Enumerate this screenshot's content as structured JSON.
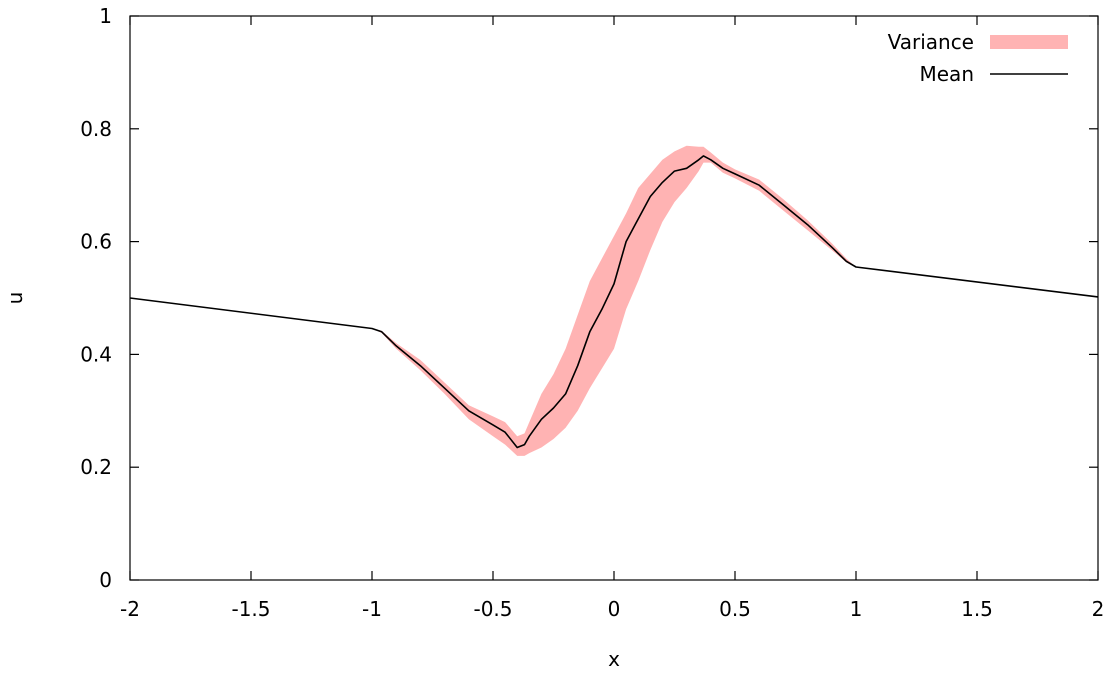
{
  "chart_data": {
    "type": "line",
    "title": "",
    "xlabel": "x",
    "ylabel": "u",
    "xlim": [
      -2,
      2
    ],
    "ylim": [
      0,
      1
    ],
    "x_ticks": [
      -2,
      -1.5,
      -1,
      -0.5,
      0,
      0.5,
      1,
      1.5,
      2
    ],
    "x_tick_labels": [
      "-2",
      "-1.5",
      "-1",
      "-0.5",
      "0",
      "0.5",
      "1",
      "1.5",
      "2"
    ],
    "y_ticks": [
      0,
      0.2,
      0.4,
      0.6,
      0.8,
      1
    ],
    "y_tick_labels": [
      "0",
      "0.2",
      "0.4",
      "0.6",
      "0.8",
      "1"
    ],
    "grid": false,
    "legend_position": "top-right",
    "series": [
      {
        "name": "Mean",
        "kind": "line",
        "color": "#000000",
        "x": [
          -2.0,
          -1.0,
          -0.96,
          -0.9,
          -0.8,
          -0.7,
          -0.6,
          -0.5,
          -0.45,
          -0.4,
          -0.37,
          -0.35,
          -0.3,
          -0.25,
          -0.2,
          -0.15,
          -0.1,
          -0.05,
          0.0,
          0.05,
          0.1,
          0.15,
          0.2,
          0.25,
          0.3,
          0.35,
          0.37,
          0.4,
          0.45,
          0.5,
          0.6,
          0.7,
          0.8,
          0.9,
          0.96,
          1.0,
          2.0
        ],
        "y": [
          0.5,
          0.446,
          0.44,
          0.415,
          0.38,
          0.34,
          0.3,
          0.275,
          0.262,
          0.235,
          0.24,
          0.255,
          0.285,
          0.305,
          0.33,
          0.38,
          0.44,
          0.48,
          0.525,
          0.6,
          0.64,
          0.68,
          0.705,
          0.725,
          0.73,
          0.745,
          0.752,
          0.745,
          0.73,
          0.72,
          0.7,
          0.665,
          0.63,
          0.59,
          0.565,
          0.555,
          0.502
        ]
      },
      {
        "name": "Variance",
        "kind": "band",
        "color": "#ffb3b3",
        "x": [
          -1.0,
          -0.96,
          -0.9,
          -0.8,
          -0.7,
          -0.6,
          -0.5,
          -0.45,
          -0.4,
          -0.37,
          -0.35,
          -0.3,
          -0.25,
          -0.2,
          -0.15,
          -0.1,
          -0.05,
          0.0,
          0.05,
          0.1,
          0.15,
          0.2,
          0.25,
          0.3,
          0.35,
          0.37,
          0.4,
          0.45,
          0.5,
          0.6,
          0.7,
          0.8,
          0.9,
          0.96,
          1.0
        ],
        "lower": [
          0.446,
          0.438,
          0.41,
          0.372,
          0.33,
          0.285,
          0.255,
          0.24,
          0.22,
          0.22,
          0.225,
          0.235,
          0.25,
          0.27,
          0.3,
          0.34,
          0.375,
          0.41,
          0.48,
          0.53,
          0.585,
          0.635,
          0.67,
          0.695,
          0.725,
          0.74,
          0.74,
          0.722,
          0.712,
          0.69,
          0.655,
          0.62,
          0.585,
          0.563,
          0.555
        ],
        "upper": [
          0.446,
          0.442,
          0.42,
          0.39,
          0.35,
          0.31,
          0.29,
          0.28,
          0.255,
          0.26,
          0.28,
          0.33,
          0.365,
          0.41,
          0.47,
          0.53,
          0.57,
          0.61,
          0.65,
          0.695,
          0.72,
          0.745,
          0.76,
          0.77,
          0.768,
          0.768,
          0.758,
          0.74,
          0.728,
          0.71,
          0.675,
          0.638,
          0.597,
          0.57,
          0.555
        ]
      }
    ]
  }
}
